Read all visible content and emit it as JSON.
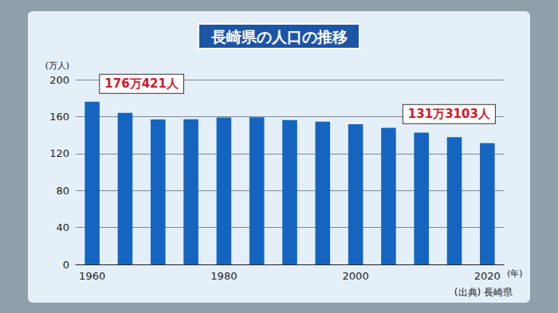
{
  "chart_data": {
    "type": "bar",
    "title": "長崎県の人口の推移",
    "categories": [
      "1960",
      null,
      null,
      null,
      "1980",
      null,
      null,
      null,
      "2000",
      null,
      null,
      null,
      "2020"
    ],
    "values": [
      176.0421,
      164.1,
      157.0,
      157.1,
      159.1,
      159.3,
      156.3,
      154.5,
      151.7,
      147.9,
      142.7,
      137.7,
      131.3103
    ],
    "color": "#1565c0",
    "ylim": [
      0,
      200
    ],
    "yticks": [
      0,
      40,
      80,
      120,
      160,
      200
    ],
    "grid": true,
    "y_label": "(万人)",
    "x_label": "(年)",
    "source": "(出典) 長崎県",
    "annotations": [
      {
        "category": "1960",
        "text": "176万421人"
      },
      {
        "category": "2020",
        "text": "131万3103人"
      }
    ]
  }
}
